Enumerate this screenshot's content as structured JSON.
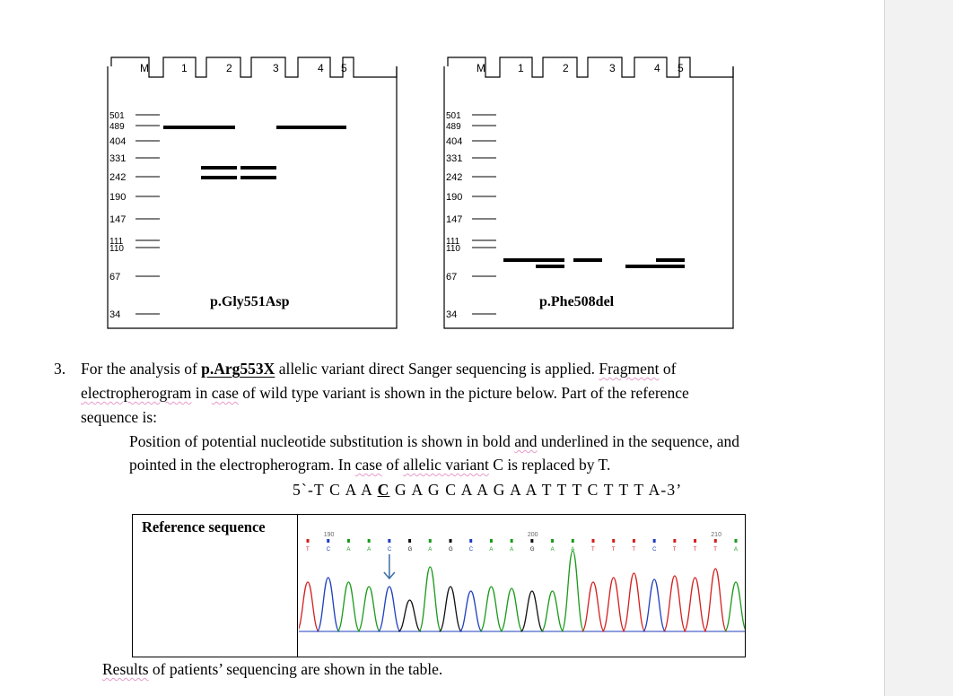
{
  "gels": [
    {
      "lanes": [
        "M",
        "1",
        "2",
        "3",
        "4",
        "5"
      ],
      "markers": [
        "501",
        "489",
        "404",
        "331",
        "242",
        "190",
        "147",
        "111",
        "110",
        "67",
        "34"
      ],
      "caption": "p.Gly551Asp"
    },
    {
      "lanes": [
        "M",
        "1",
        "2",
        "3",
        "4",
        "5"
      ],
      "markers": [
        "501",
        "489",
        "404",
        "331",
        "242",
        "190",
        "147",
        "111",
        "110",
        "67",
        "34"
      ],
      "caption": "p.Phe508del"
    }
  ],
  "question": {
    "number": "3.",
    "t1": "For the analysis of ",
    "variant": "p.Arg553X",
    "t2": " allelic variant direct Sanger sequencing is applied. ",
    "fragment": "Fragment",
    "t3": " of",
    "electro": "electropherogram",
    "t4": " in ",
    "case1": "case",
    "t5": " of wild type variant is shown in the picture below. Part of the reference",
    "t6": "sequence is:"
  },
  "position_note": {
    "t1": "Position of potential nucleotide substitution is shown in bold ",
    "and": "and",
    "t2": " underlined in the sequence, and",
    "t3": "pointed in the electropherogram. In ",
    "case2": "case",
    "t4": " of ",
    "allelic": "allelic variant",
    "t5": " C is replaced by T."
  },
  "sequence": {
    "prefix": "5`-T C A A ",
    "highlight": "C",
    "suffix": " G A G C A A G A A T T T C T T T A-3’"
  },
  "reference_table": {
    "label": "Reference sequence",
    "scale": [
      "190",
      "200",
      "210"
    ],
    "bases": [
      "T",
      "C",
      "A",
      "A",
      "C",
      "G",
      "A",
      "G",
      "C",
      "A",
      "A",
      "G",
      "A",
      "A",
      "T",
      "T",
      "T",
      "C",
      "T",
      "T",
      "T",
      "A"
    ],
    "colors": {
      "A": "#1a9a1a",
      "C": "#1f3fbf",
      "G": "#111111",
      "T": "#d42020"
    },
    "arrow_color": "#3a6ea5"
  },
  "results_text": {
    "results": "Results",
    "rest": " of patients’ sequencing are shown in the table."
  }
}
